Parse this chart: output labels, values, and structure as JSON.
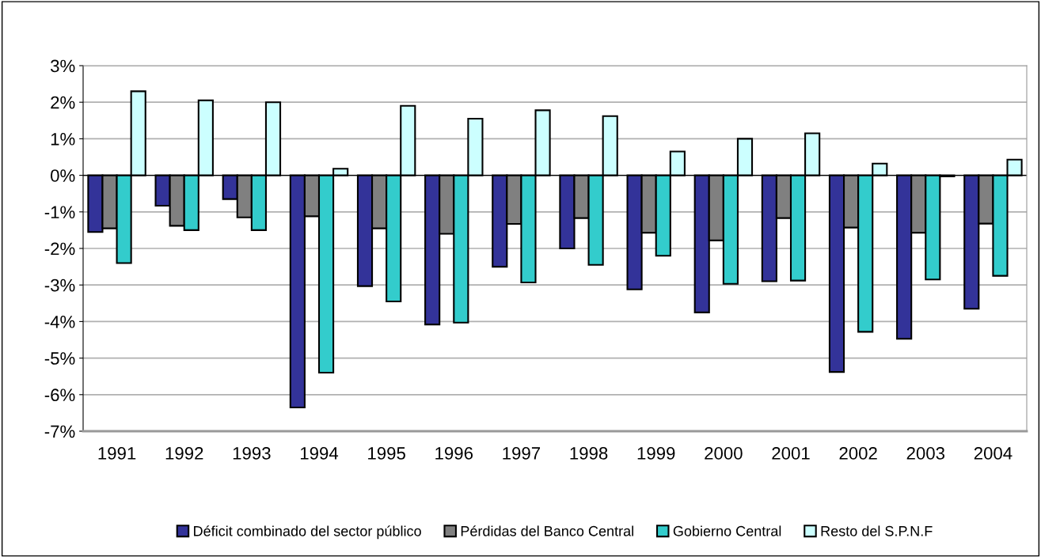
{
  "chart_data": {
    "type": "bar",
    "categories": [
      "1991",
      "1992",
      "1993",
      "1994",
      "1995",
      "1996",
      "1997",
      "1998",
      "1999",
      "2000",
      "2001",
      "2002",
      "2003",
      "2004"
    ],
    "series": [
      {
        "name": "Déficit combinado del sector público",
        "color": "#333399",
        "values": [
          -1.55,
          -0.83,
          -0.65,
          -6.35,
          -3.03,
          -4.08,
          -2.5,
          -2.0,
          -3.12,
          -3.75,
          -2.9,
          -5.38,
          -4.47,
          -3.65
        ]
      },
      {
        "name": "Pérdidas del Banco Central",
        "color": "#808080",
        "values": [
          -1.45,
          -1.38,
          -1.15,
          -1.12,
          -1.45,
          -1.6,
          -1.33,
          -1.17,
          -1.57,
          -1.78,
          -1.17,
          -1.43,
          -1.57,
          -1.32
        ]
      },
      {
        "name": "Gobierno Central",
        "color": "#33cccc",
        "values": [
          -2.4,
          -1.5,
          -1.5,
          -5.4,
          -3.45,
          -4.03,
          -2.93,
          -2.45,
          -2.2,
          -2.97,
          -2.88,
          -4.28,
          -2.85,
          -2.75
        ]
      },
      {
        "name": "Resto del S.P.N.F",
        "color": "#ccffff",
        "values": [
          2.3,
          2.05,
          2.0,
          0.18,
          1.9,
          1.55,
          1.78,
          1.62,
          0.65,
          1.0,
          1.15,
          0.32,
          -0.03,
          0.43
        ]
      }
    ],
    "ylim": [
      -7,
      3
    ],
    "yticks": [
      {
        "value": -7,
        "label": "-7%"
      },
      {
        "value": -6,
        "label": "-6%"
      },
      {
        "value": -5,
        "label": "-5%"
      },
      {
        "value": -4,
        "label": "-4%"
      },
      {
        "value": -3,
        "label": "-3%"
      },
      {
        "value": -2,
        "label": "-2%"
      },
      {
        "value": -1,
        "label": "-1%"
      },
      {
        "value": 0,
        "label": "0%"
      },
      {
        "value": 1,
        "label": "1%"
      },
      {
        "value": 2,
        "label": "2%"
      },
      {
        "value": 3,
        "label": "3%"
      }
    ],
    "grid": "y",
    "legend": "bottom"
  }
}
